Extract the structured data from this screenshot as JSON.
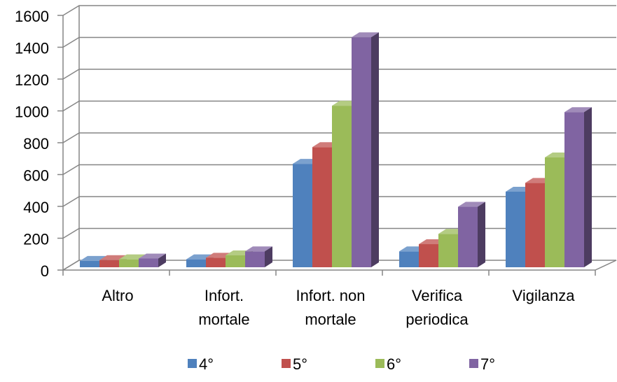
{
  "chart_data": {
    "type": "bar",
    "variant": "3d-clustered-column",
    "title": "",
    "xlabel": "",
    "ylabel": "",
    "ylim": [
      0,
      1600
    ],
    "yticks": [
      0,
      200,
      400,
      600,
      800,
      1000,
      1200,
      1400,
      1600
    ],
    "grid": true,
    "legend_position": "bottom",
    "categories": [
      [
        "Altro"
      ],
      [
        "Infort.",
        "mortale"
      ],
      [
        "Infort. non",
        "mortale"
      ],
      [
        "Verifica",
        "periodica"
      ],
      [
        "Vigilanza"
      ]
    ],
    "series": [
      {
        "name": "4°",
        "color": "#4F81BD",
        "values": [
          40,
          50,
          650,
          100,
          475
        ]
      },
      {
        "name": "5°",
        "color": "#C0504D",
        "values": [
          45,
          60,
          755,
          145,
          530
        ]
      },
      {
        "name": "6°",
        "color": "#9BBB59",
        "values": [
          50,
          75,
          1015,
          210,
          690
        ]
      },
      {
        "name": "7°",
        "color": "#8064A2",
        "values": [
          55,
          100,
          1445,
          380,
          975
        ]
      }
    ]
  }
}
